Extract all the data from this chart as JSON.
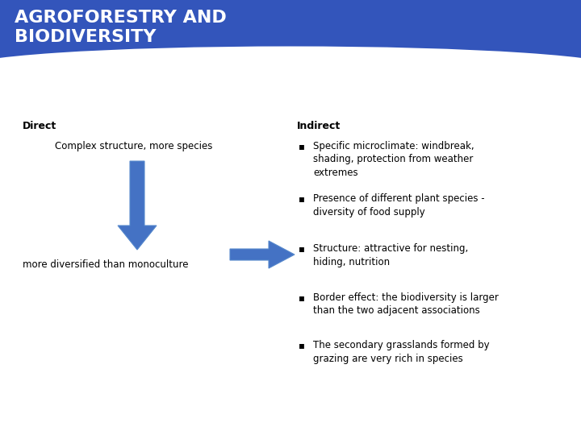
{
  "title": "AGROFORESTRY AND\nBIODIVERSITY",
  "title_bg_color": "#3355bb",
  "title_text_color": "#ffffff",
  "title_font_size": 16,
  "bg_color": "#ffffff",
  "direct_label": "Direct",
  "indirect_label": "Indirect",
  "direct_text1": "Complex structure, more species",
  "direct_text2": "more diversified than monoculture",
  "arrow_color": "#4472c4",
  "bullet_points": [
    "Specific microclimate: windbreak,\nshading, protection from weather\nextremes",
    "Presence of different plant species -\ndiversity of food supply",
    "Structure: attractive for nesting,\nhiding, nutrition",
    "Border effect: the biodiversity is larger\nthan the two adjacent associations",
    "The secondary grasslands formed by\ngrazing are very rich in species"
  ],
  "bullet_symbol": "▪",
  "direct_label_font_size": 9,
  "indirect_label_font_size": 9,
  "body_font_size": 8.5
}
